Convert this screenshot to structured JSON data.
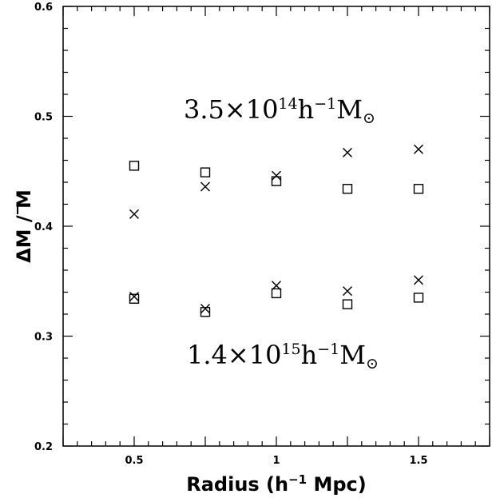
{
  "chart_data": {
    "type": "scatter",
    "xlabel_main": "Radius (h",
    "xlabel_sup": "−1",
    "xlabel_rest": " Mpc)",
    "ylabel": "ΔM / M",
    "xlim": [
      0.25,
      1.75
    ],
    "ylim": [
      0.2,
      0.6
    ],
    "x_ticks": [
      {
        "value": 0.5,
        "label": "0.5"
      },
      {
        "value": 1.0,
        "label": "1"
      },
      {
        "value": 1.5,
        "label": "1.5"
      }
    ],
    "y_ticks": [
      {
        "value": 0.2,
        "label": "0.2"
      },
      {
        "value": 0.3,
        "label": "0.3"
      },
      {
        "value": 0.4,
        "label": "0.4"
      },
      {
        "value": 0.5,
        "label": "0.5"
      },
      {
        "value": 0.6,
        "label": "0.6"
      }
    ],
    "series": [
      {
        "marker": "square",
        "x": [
          0.5,
          0.75,
          1.0,
          1.25,
          1.5
        ],
        "y": [
          0.455,
          0.449,
          0.441,
          0.434,
          0.434
        ]
      },
      {
        "marker": "cross",
        "x": [
          0.5,
          0.75,
          1.0,
          1.25,
          1.5
        ],
        "y": [
          0.411,
          0.436,
          0.446,
          0.467,
          0.47
        ]
      },
      {
        "marker": "square",
        "x": [
          0.5,
          0.75,
          1.0,
          1.25,
          1.5
        ],
        "y": [
          0.334,
          0.322,
          0.339,
          0.329,
          0.335
        ]
      },
      {
        "marker": "cross",
        "x": [
          0.5,
          0.75,
          1.0,
          1.25,
          1.5
        ],
        "y": [
          0.336,
          0.325,
          0.346,
          0.341,
          0.351
        ]
      }
    ],
    "annotations": [
      {
        "base": "3.5×10",
        "exp": "14",
        "mid": "h",
        "exp2": "−1",
        "tail": "M",
        "symbol": "⊙"
      },
      {
        "base": "1.4×10",
        "exp": "15",
        "mid": "h",
        "exp2": "−1",
        "tail": "M",
        "symbol": "⊙"
      }
    ]
  }
}
